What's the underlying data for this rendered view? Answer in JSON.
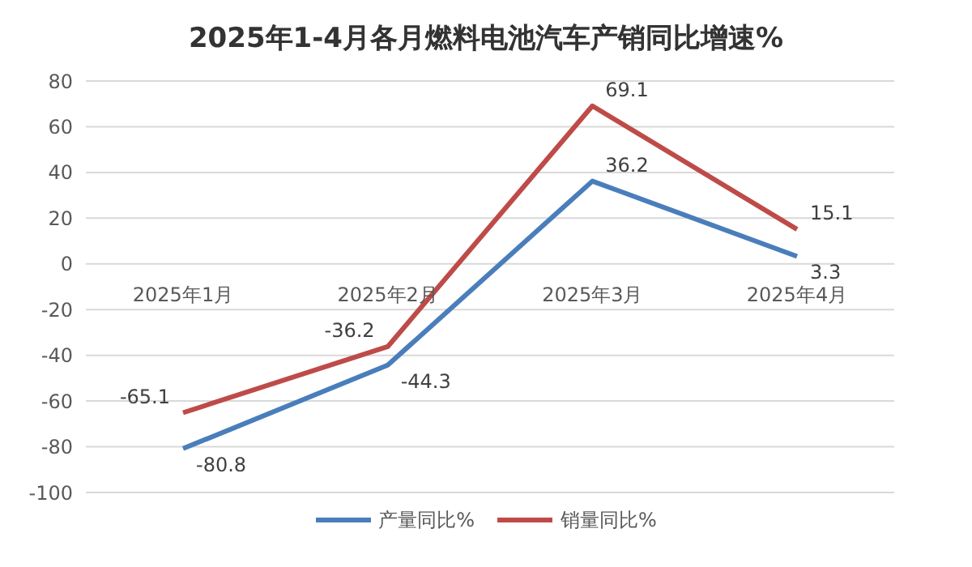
{
  "chart_data": {
    "type": "line",
    "title": "2025年1-4月各月燃料电池汽车产销同比增速%",
    "categories": [
      "2025年1月",
      "2025年2月",
      "2025年3月",
      "2025年4月"
    ],
    "series": [
      {
        "name": "产量同比%",
        "color": "#4a7ebb",
        "values": [
          -80.8,
          -44.3,
          36.2,
          3.3
        ]
      },
      {
        "name": "销量同比%",
        "color": "#be4b48",
        "values": [
          -65.1,
          -36.2,
          69.1,
          15.1
        ]
      }
    ],
    "ylim": [
      -100,
      80
    ],
    "yticks": [
      -100,
      -80,
      -60,
      -40,
      -20,
      0,
      20,
      40,
      60,
      80
    ],
    "grid": "y",
    "legend": "bottom",
    "data_labels": true,
    "marker": "none",
    "line_style": "solid"
  }
}
